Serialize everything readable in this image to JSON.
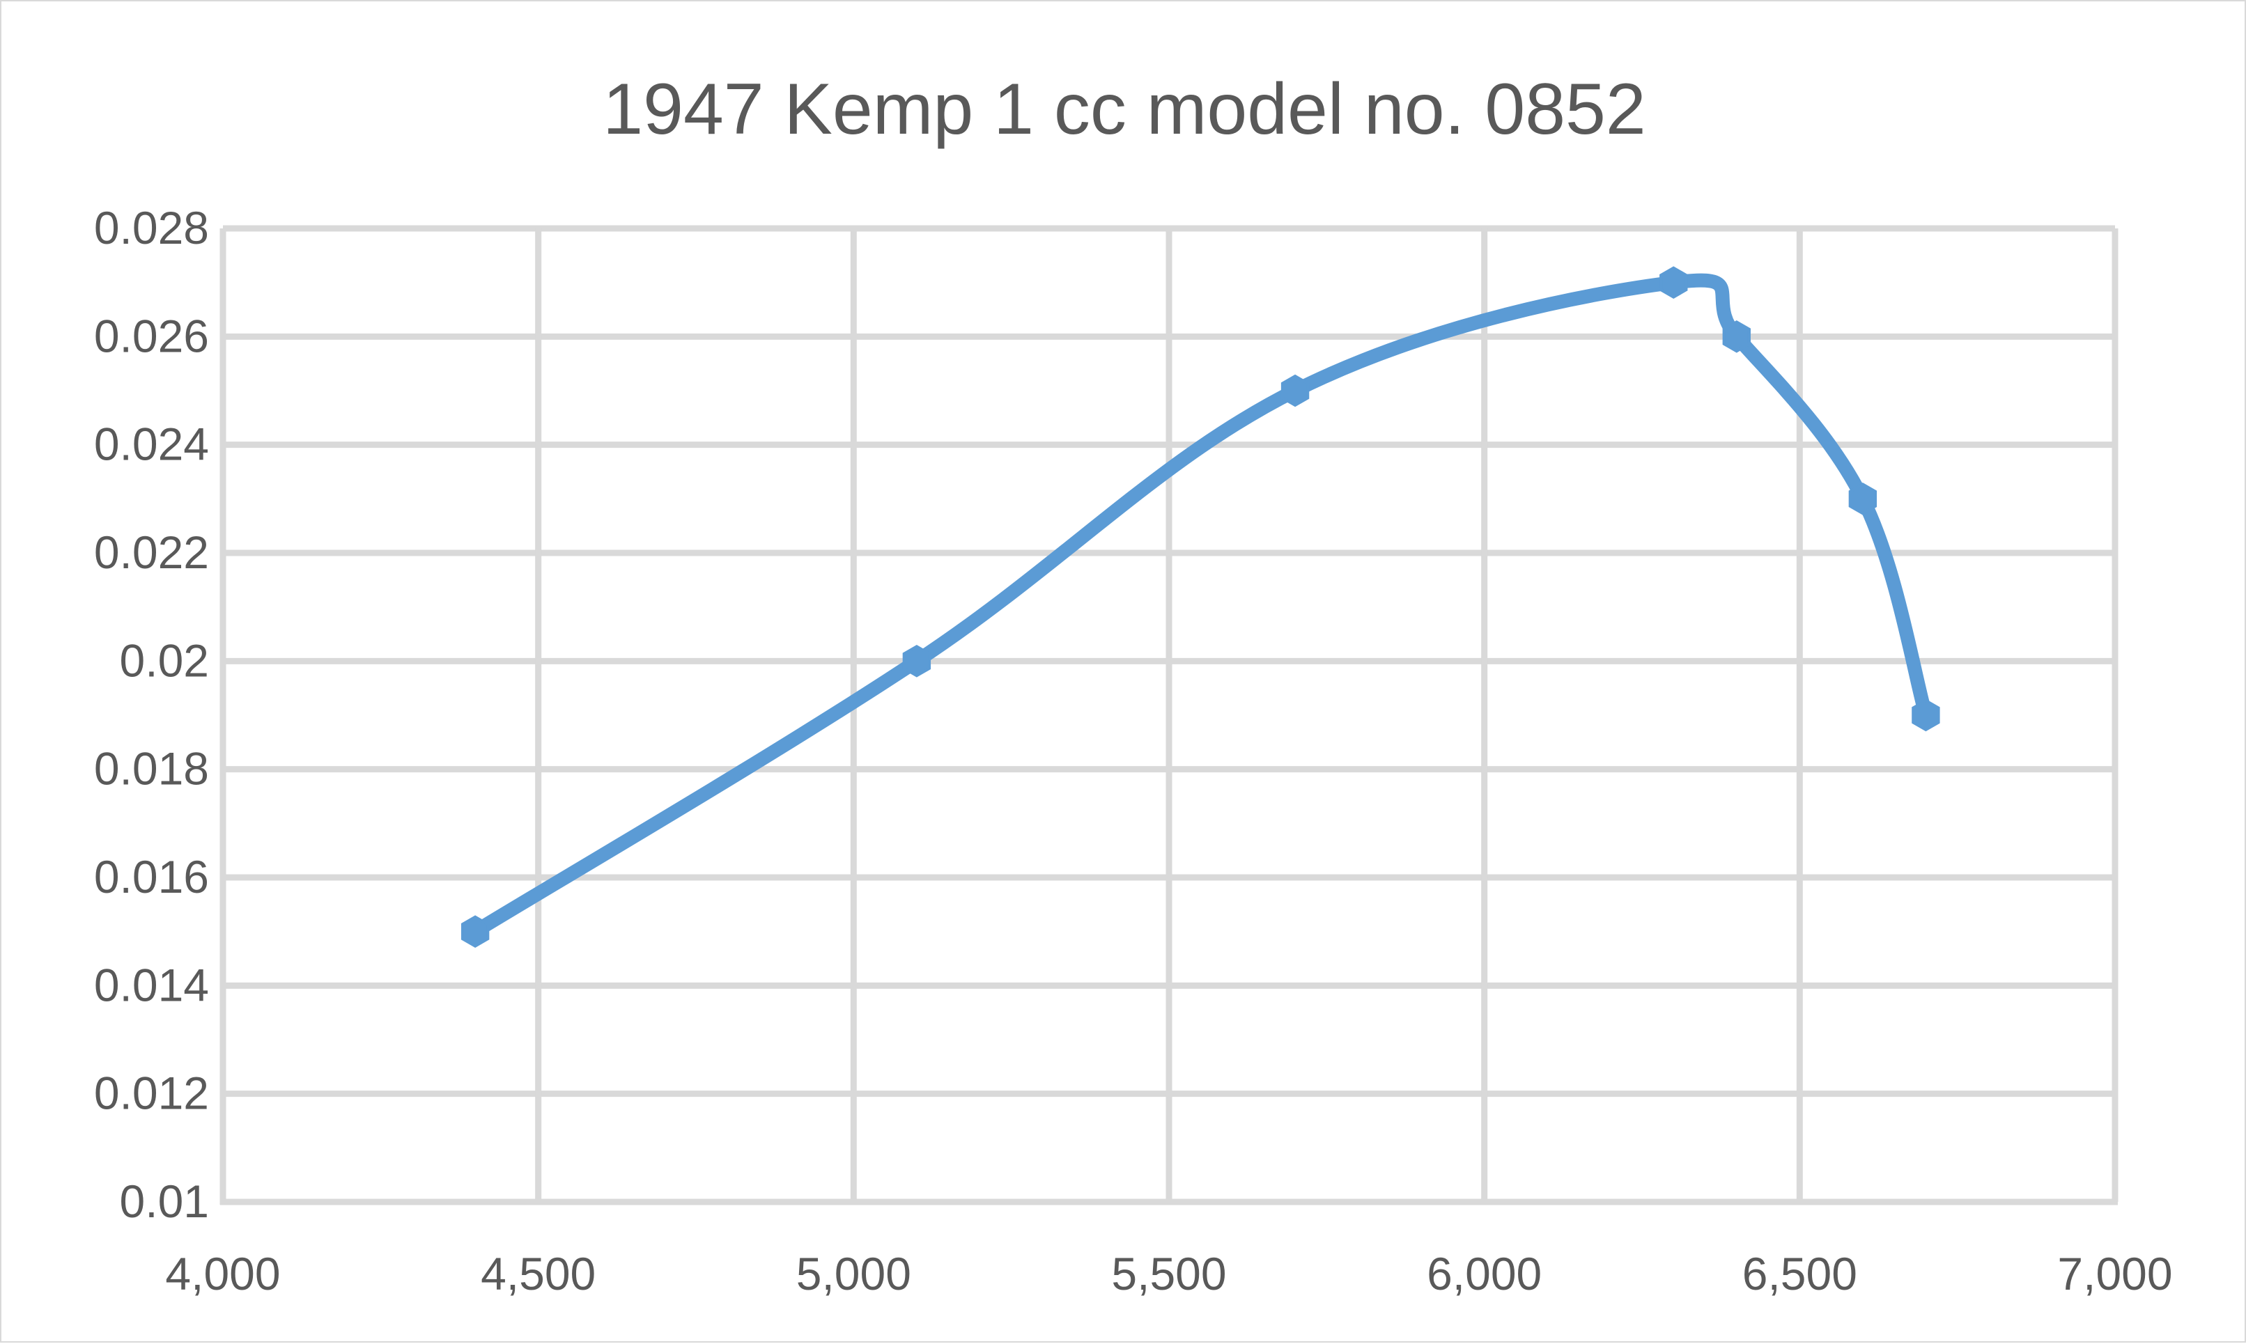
{
  "chart_data": {
    "type": "line",
    "title": "1947 Kemp 1 cc model no. 0852",
    "xlabel": "",
    "ylabel": "",
    "xlim": [
      4000,
      7000
    ],
    "ylim": [
      0.01,
      0.028
    ],
    "x_ticks": [
      4000,
      4500,
      5000,
      5500,
      6000,
      6500,
      7000
    ],
    "x_tick_labels": [
      "4,000",
      "4,500",
      "5,000",
      "5,500",
      "6,000",
      "6,500",
      "7,000"
    ],
    "y_ticks": [
      0.01,
      0.012,
      0.014,
      0.016,
      0.018,
      0.02,
      0.022,
      0.024,
      0.026,
      0.028
    ],
    "y_tick_labels": [
      "0.01",
      "0.012",
      "0.014",
      "0.016",
      "0.018",
      "0.02",
      "0.022",
      "0.024",
      "0.026",
      "0.028"
    ],
    "grid": true,
    "legend": "none",
    "smooth": true,
    "series": [
      {
        "color": "#5b9bd5",
        "x": [
          4400,
          5100,
          5700,
          6300,
          6400,
          6600,
          6700
        ],
        "y": [
          0.015,
          0.02,
          0.025,
          0.027,
          0.026,
          0.023,
          0.019
        ]
      }
    ]
  }
}
